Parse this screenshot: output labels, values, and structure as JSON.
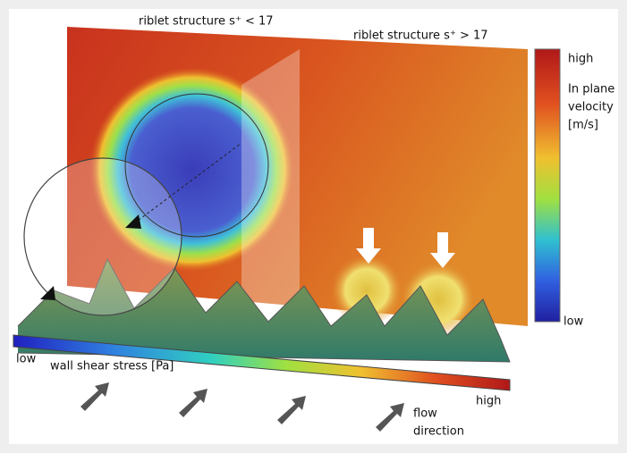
{
  "labels": {
    "riblet_small": "riblet structure s⁺ < 17",
    "riblet_large": "riblet structure s⁺ > 17"
  },
  "velocity_colorbar": {
    "high": "high",
    "title_lines": [
      "In plane",
      "velocity",
      "[m/s]"
    ],
    "low": "low"
  },
  "shear_colorbar": {
    "low": "low",
    "title": "wall shear stress [Pa]",
    "high": "high"
  },
  "flow_label": [
    "flow",
    "direction"
  ]
}
